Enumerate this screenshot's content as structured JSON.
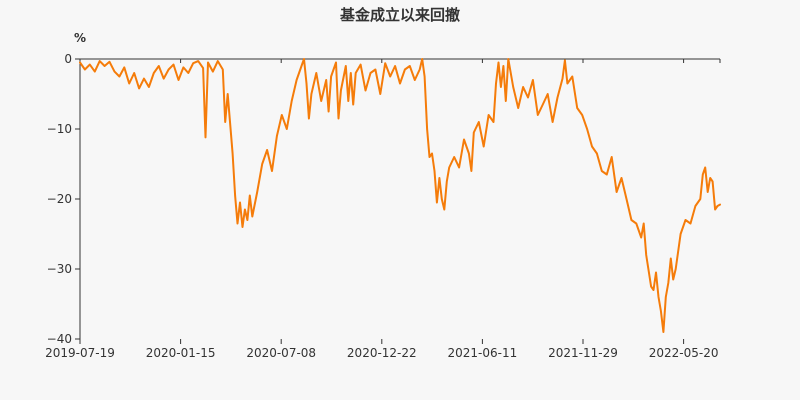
{
  "chart_data": {
    "type": "line",
    "title": "基金成立以来回撤",
    "ylabel": "%",
    "ylim": [
      -40,
      0
    ],
    "yticks": [
      "0",
      "-10",
      "-20",
      "-30",
      "-40"
    ],
    "xticks": [
      "2019-07-19",
      "2020-01-15",
      "2020-07-08",
      "2020-12-22",
      "2021-06-11",
      "2021-11-29",
      "2022-05-20"
    ],
    "line_color": "#f57c0a",
    "grid": false,
    "series": [
      {
        "values": [
          [
            0,
            -0.5
          ],
          [
            2,
            -1.5
          ],
          [
            4,
            -0.8
          ],
          [
            6,
            -1.8
          ],
          [
            8,
            -0.3
          ],
          [
            10,
            -1.0
          ],
          [
            12,
            -0.4
          ],
          [
            14,
            -1.8
          ],
          [
            16,
            -2.5
          ],
          [
            18,
            -1.2
          ],
          [
            20,
            -3.5
          ],
          [
            22,
            -2.0
          ],
          [
            24,
            -4.2
          ],
          [
            26,
            -2.8
          ],
          [
            28,
            -4.0
          ],
          [
            30,
            -2.0
          ],
          [
            32,
            -1.0
          ],
          [
            34,
            -2.8
          ],
          [
            36,
            -1.5
          ],
          [
            38,
            -0.8
          ],
          [
            40,
            -3.0
          ],
          [
            42,
            -1.2
          ],
          [
            44,
            -2.0
          ],
          [
            46,
            -0.6
          ],
          [
            48,
            -0.3
          ],
          [
            50,
            -1.3
          ],
          [
            51,
            -11.2
          ],
          [
            52,
            -0.5
          ],
          [
            54,
            -1.8
          ],
          [
            56,
            -0.3
          ],
          [
            58,
            -1.5
          ],
          [
            59,
            -9.0
          ],
          [
            60,
            -5.0
          ],
          [
            62,
            -13.5
          ],
          [
            63,
            -19.5
          ],
          [
            64,
            -23.5
          ],
          [
            65,
            -20.5
          ],
          [
            66,
            -24.0
          ],
          [
            67,
            -21.5
          ],
          [
            68,
            -23.0
          ],
          [
            69,
            -19.5
          ],
          [
            70,
            -22.5
          ],
          [
            72,
            -19.0
          ],
          [
            74,
            -15.0
          ],
          [
            76,
            -13.0
          ],
          [
            78,
            -16.0
          ],
          [
            80,
            -11.0
          ],
          [
            82,
            -8.0
          ],
          [
            84,
            -10.0
          ],
          [
            86,
            -6.0
          ],
          [
            88,
            -3.0
          ],
          [
            90,
            -1.0
          ],
          [
            91,
            0.0
          ],
          [
            92,
            -3.5
          ],
          [
            93,
            -8.5
          ],
          [
            94,
            -5.0
          ],
          [
            96,
            -2.0
          ],
          [
            98,
            -6.0
          ],
          [
            100,
            -3.0
          ],
          [
            101,
            -7.5
          ],
          [
            102,
            -2.5
          ],
          [
            104,
            -0.5
          ],
          [
            105,
            -8.5
          ],
          [
            106,
            -4.5
          ],
          [
            108,
            -1.0
          ],
          [
            109,
            -6.0
          ],
          [
            110,
            -2.0
          ],
          [
            111,
            -6.5
          ],
          [
            112,
            -2.0
          ],
          [
            114,
            -0.8
          ],
          [
            116,
            -4.5
          ],
          [
            118,
            -2.0
          ],
          [
            120,
            -1.5
          ],
          [
            122,
            -5.0
          ],
          [
            124,
            -0.6
          ],
          [
            126,
            -2.5
          ],
          [
            128,
            -1.0
          ],
          [
            130,
            -3.5
          ],
          [
            132,
            -1.5
          ],
          [
            134,
            -1.0
          ],
          [
            136,
            -3.0
          ],
          [
            138,
            -1.5
          ],
          [
            139,
            0.0
          ],
          [
            140,
            -2.5
          ],
          [
            141,
            -10.0
          ],
          [
            142,
            -14.0
          ],
          [
            143,
            -13.5
          ],
          [
            144,
            -16.0
          ],
          [
            145,
            -20.5
          ],
          [
            146,
            -17.0
          ],
          [
            147,
            -20.0
          ],
          [
            148,
            -21.5
          ],
          [
            149,
            -17.5
          ],
          [
            150,
            -15.5
          ],
          [
            152,
            -14.0
          ],
          [
            154,
            -15.5
          ],
          [
            156,
            -11.5
          ],
          [
            158,
            -13.5
          ],
          [
            159,
            -16.0
          ],
          [
            160,
            -10.5
          ],
          [
            162,
            -9.0
          ],
          [
            164,
            -12.5
          ],
          [
            166,
            -8.0
          ],
          [
            168,
            -9.0
          ],
          [
            169,
            -3.5
          ],
          [
            170,
            -0.5
          ],
          [
            171,
            -4.0
          ],
          [
            172,
            -1.0
          ],
          [
            173,
            -6.0
          ],
          [
            174,
            0.0
          ],
          [
            176,
            -4.0
          ],
          [
            178,
            -7.0
          ],
          [
            180,
            -4.0
          ],
          [
            182,
            -5.5
          ],
          [
            184,
            -3.0
          ],
          [
            186,
            -8.0
          ],
          [
            188,
            -6.5
          ],
          [
            190,
            -5.0
          ],
          [
            192,
            -9.0
          ],
          [
            194,
            -5.5
          ],
          [
            196,
            -2.8
          ],
          [
            197,
            -0.2
          ],
          [
            198,
            -3.5
          ],
          [
            200,
            -2.5
          ],
          [
            202,
            -7.0
          ],
          [
            204,
            -8.0
          ],
          [
            206,
            -10.0
          ],
          [
            208,
            -12.5
          ],
          [
            210,
            -13.5
          ],
          [
            212,
            -16.0
          ],
          [
            214,
            -16.5
          ],
          [
            216,
            -14.0
          ],
          [
            218,
            -19.0
          ],
          [
            220,
            -17.0
          ],
          [
            222,
            -20.0
          ],
          [
            224,
            -23.0
          ],
          [
            226,
            -23.5
          ],
          [
            228,
            -25.5
          ],
          [
            229,
            -23.5
          ],
          [
            230,
            -28.0
          ],
          [
            232,
            -32.5
          ],
          [
            233,
            -33.0
          ],
          [
            234,
            -30.5
          ],
          [
            235,
            -34.0
          ],
          [
            236,
            -36.0
          ],
          [
            237,
            -39.0
          ],
          [
            238,
            -34.0
          ],
          [
            239,
            -32.0
          ],
          [
            240,
            -28.5
          ],
          [
            241,
            -31.5
          ],
          [
            242,
            -30.0
          ],
          [
            244,
            -25.0
          ],
          [
            246,
            -23.0
          ],
          [
            248,
            -23.5
          ],
          [
            250,
            -21.0
          ],
          [
            252,
            -20.0
          ],
          [
            253,
            -16.5
          ],
          [
            254,
            -15.5
          ],
          [
            255,
            -19.0
          ],
          [
            256,
            -17.0
          ],
          [
            257,
            -17.5
          ],
          [
            258,
            -21.5
          ],
          [
            259,
            -21.0
          ],
          [
            260,
            -20.8
          ]
        ]
      }
    ]
  }
}
